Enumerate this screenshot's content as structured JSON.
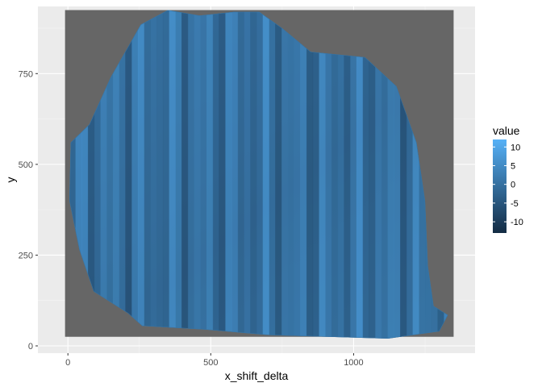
{
  "chart_data": {
    "type": "heatmap",
    "title": "",
    "xlabel": "x_shift_delta",
    "ylabel": "y",
    "xlim": [
      -105,
      1425
    ],
    "ylim": [
      -20,
      935
    ],
    "x_ticks": [
      0,
      500,
      1000
    ],
    "x_tick_labels": [
      "0",
      "500",
      "1000"
    ],
    "y_ticks": [
      0,
      250,
      500,
      750
    ],
    "y_tick_labels": [
      "0",
      "250",
      "500",
      "750"
    ],
    "grid": true,
    "na_color": "#666666",
    "legend": {
      "title": "value",
      "position": "right",
      "min": -13,
      "max": 12,
      "breaks": [
        10,
        5,
        0,
        -5,
        -10
      ],
      "break_labels": [
        "10",
        "5",
        "0",
        "-5",
        "-10"
      ],
      "low_color": "#132B43",
      "high_color": "#56B1F7"
    },
    "colors": {
      "panel_background": "#EBEBEB",
      "grid_major": "#FFFFFF",
      "grid_minor": "#F5F5F5"
    },
    "missing_region": {
      "x_range": [
        -10,
        1350
      ],
      "y_range": [
        25,
        925
      ],
      "value": "NA"
    },
    "valued_region": {
      "boundary": [
        [
          90,
          150
        ],
        [
          40,
          265
        ],
        [
          5,
          400
        ],
        [
          10,
          560
        ],
        [
          75,
          610
        ],
        [
          150,
          740
        ],
        [
          255,
          885
        ],
        [
          350,
          925
        ],
        [
          460,
          910
        ],
        [
          580,
          920
        ],
        [
          670,
          920
        ],
        [
          750,
          875
        ],
        [
          850,
          810
        ],
        [
          1040,
          795
        ],
        [
          1150,
          715
        ],
        [
          1220,
          560
        ],
        [
          1250,
          400
        ],
        [
          1260,
          220
        ],
        [
          1280,
          110
        ],
        [
          1330,
          85
        ],
        [
          1300,
          40
        ],
        [
          1120,
          20
        ],
        [
          910,
          25
        ],
        [
          700,
          30
        ],
        [
          480,
          45
        ],
        [
          260,
          55
        ],
        [
          210,
          90
        ]
      ],
      "value_range": [
        -12,
        12
      ]
    }
  }
}
